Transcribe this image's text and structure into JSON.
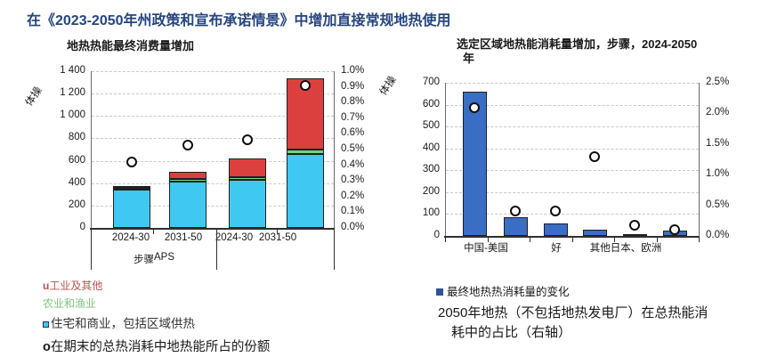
{
  "page_title": "在《2023-2050年州政策和宣布承诺情景》中增加直接常规地热使用",
  "chart_data": [
    {
      "id": "geothermal-final-energy-consumption-increase",
      "type": "bar",
      "stacked": true,
      "title": "地热热能最终消费量增加",
      "ylabel": "体操",
      "ylim": [
        0,
        1400
      ],
      "ytick_labels": [
        "0",
        "200",
        "400",
        "600",
        "800",
        "1 000",
        "1 200",
        "1 400"
      ],
      "y2lim": [
        0,
        1.0
      ],
      "y2tick_labels": [
        "0.0%",
        "0.1%",
        "0.2%",
        "0.3%",
        "0.4%",
        "0.5%",
        "0.6%",
        "0.7%",
        "0.8%",
        "0.9%",
        "1.0%"
      ],
      "categories": [
        "2024-30",
        "2031-50",
        "2024-30",
        "2031-50"
      ],
      "group_labels": [
        "步骤",
        "APS"
      ],
      "grid": true,
      "series": [
        {
          "name": "住宅和商业，包括区域供热",
          "color": "#3FC9F2",
          "values": [
            345,
            415,
            430,
            660
          ]
        },
        {
          "name": "农业和渔业",
          "color": "#68D97E",
          "values": [
            10,
            25,
            25,
            40
          ]
        },
        {
          "name": "工业及其他",
          "color": "#DC403E",
          "values": [
            15,
            60,
            165,
            640
          ]
        }
      ],
      "markers": {
        "name": "在期末的总热消耗中地热能所占的份额",
        "axis": "right",
        "shape": "open-circle",
        "values": [
          0.42,
          0.53,
          0.56,
          0.91
        ]
      }
    },
    {
      "id": "regional-geothermal-consumption-increase",
      "type": "bar",
      "stacked": false,
      "title": "选定区域地热能消耗量增加，步骤，2024-2050年",
      "title_lines": [
        "选定区域地热能消耗量增加，步骤，2024-2050",
        "年"
      ],
      "ylabel": "体操",
      "ylim": [
        0,
        700
      ],
      "ytick_labels": [
        "0",
        "100",
        "200",
        "300",
        "400",
        "500",
        "600",
        "700"
      ],
      "y2lim": [
        0,
        2.5
      ],
      "y2tick_labels": [
        "0.0%",
        "0.5%",
        "1.0%",
        "1.5%",
        "2.0%",
        "2.5%"
      ],
      "categories_shown": [
        "中国-美国",
        "好",
        "其他日本、欧洲"
      ],
      "grid": true,
      "series": [
        {
          "name": "最终地热热消耗量的变化",
          "color": "#3A6DC4",
          "values": [
            660,
            85,
            55,
            30,
            8,
            25
          ]
        }
      ],
      "markers": {
        "name": "2050年地热（不包括地热发电厂）在总热能消耗中的占比（右轴）",
        "axis": "right",
        "shape": "open-circle",
        "values": [
          2.1,
          0.4,
          0.4,
          1.3,
          0.18,
          0.1
        ]
      }
    }
  ],
  "left_legend": {
    "items": [
      {
        "bullet": "u",
        "label": "工业及其他",
        "color": "#C0504D",
        "size": "small"
      },
      {
        "bullet": "",
        "label": "农业和渔业",
        "color": "#7DC67D",
        "size": "small"
      },
      {
        "bullet": "square",
        "label": "住宅和商业，包括区域供热",
        "color": "#333333",
        "bullet_color": "#3FC9F2",
        "size": "medium"
      },
      {
        "bullet": "o",
        "label": "在期末的总热消耗中地热能所占的份额",
        "color": "#1a1a1a",
        "size": "large"
      }
    ]
  },
  "right_legend": {
    "series_bullet_color": "#2F5597"
  }
}
